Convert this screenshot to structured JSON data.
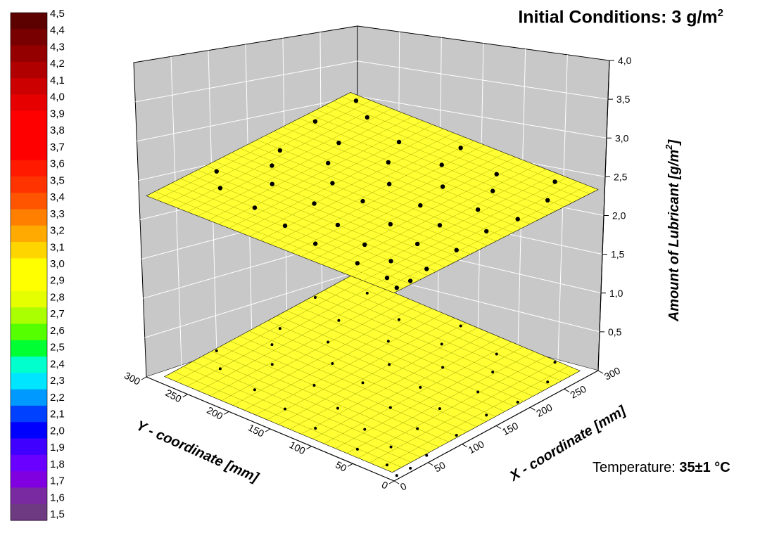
{
  "title": {
    "text": "Initial Conditions: 3 g/m",
    "sup": "2"
  },
  "temperature": {
    "label": "Temperature: ",
    "value": "35±1 °C"
  },
  "chart_data": {
    "type": "scatter3d_surface",
    "surface_value": 3.0,
    "surface_color": "#ffff33",
    "x_axis": {
      "label": "X - coordinate [mm]",
      "range": [
        0,
        300
      ],
      "ticks": [
        "0",
        "50",
        "100",
        "150",
        "200",
        "250",
        "300"
      ]
    },
    "y_axis": {
      "label": "Y - coordinate [mm]",
      "range": [
        0,
        300
      ],
      "ticks": [
        "0",
        "50",
        "100",
        "150",
        "200",
        "250",
        "300"
      ]
    },
    "z_axis": {
      "label": "Amount of Lubricant [g/m",
      "label_sup": "2",
      "label_end": "]",
      "range": [
        0,
        4.0
      ],
      "ticks": [
        "0,5",
        "1,0",
        "1,5",
        "2,0",
        "2,5",
        "3,0",
        "3,5",
        "4,0"
      ]
    },
    "colorscale": {
      "ticks": [
        "4,5",
        "4,4",
        "4,3",
        "4,2",
        "4,1",
        "4,0",
        "3,9",
        "3,8",
        "3,7",
        "3,6",
        "3,5",
        "3,4",
        "3,3",
        "3,2",
        "3,1",
        "3,0",
        "2,9",
        "2,8",
        "2,7",
        "2,6",
        "2,5",
        "2,4",
        "2,3",
        "2,2",
        "2,1",
        "2,0",
        "1,9",
        "1,8",
        "1,7",
        "1,6",
        "1,5"
      ],
      "colors": [
        "#5c0000",
        "#780000",
        "#940000",
        "#b00000",
        "#cc0000",
        "#e60000",
        "#ff0000",
        "#ff0000",
        "#ff0000",
        "#ff1a00",
        "#ff3300",
        "#ff5500",
        "#ff8000",
        "#ffaa00",
        "#ffd500",
        "#ffff00",
        "#ffff00",
        "#e6ff00",
        "#aaff00",
        "#55ff00",
        "#00ff33",
        "#00ffcc",
        "#00e5ff",
        "#0099ff",
        "#0040ff",
        "#0000ff",
        "#4000ff",
        "#6a00ff",
        "#8000e0",
        "#7a2aa0",
        "#6e3a82"
      ]
    },
    "points": [
      {
        "x": 10,
        "y": 5,
        "z": 3.0
      },
      {
        "x": 30,
        "y": 5,
        "z": 3.0
      },
      {
        "x": 20,
        "y": 25,
        "z": 3.0
      },
      {
        "x": 60,
        "y": 10,
        "z": 3.0
      },
      {
        "x": 50,
        "y": 45,
        "z": 3.0
      },
      {
        "x": 25,
        "y": 65,
        "z": 3.0
      },
      {
        "x": 110,
        "y": 15,
        "z": 3.0
      },
      {
        "x": 95,
        "y": 50,
        "z": 3.0
      },
      {
        "x": 60,
        "y": 85,
        "z": 3.0
      },
      {
        "x": 30,
        "y": 120,
        "z": 3.0
      },
      {
        "x": 160,
        "y": 20,
        "z": 3.0
      },
      {
        "x": 140,
        "y": 60,
        "z": 3.0
      },
      {
        "x": 110,
        "y": 95,
        "z": 3.0
      },
      {
        "x": 75,
        "y": 130,
        "z": 3.0
      },
      {
        "x": 40,
        "y": 165,
        "z": 3.0
      },
      {
        "x": 200,
        "y": 15,
        "z": 3.0
      },
      {
        "x": 190,
        "y": 55,
        "z": 3.0
      },
      {
        "x": 160,
        "y": 100,
        "z": 3.0
      },
      {
        "x": 130,
        "y": 145,
        "z": 3.0
      },
      {
        "x": 95,
        "y": 175,
        "z": 3.0
      },
      {
        "x": 50,
        "y": 210,
        "z": 3.0
      },
      {
        "x": 250,
        "y": 20,
        "z": 3.0
      },
      {
        "x": 230,
        "y": 70,
        "z": 3.0
      },
      {
        "x": 205,
        "y": 110,
        "z": 3.0
      },
      {
        "x": 175,
        "y": 150,
        "z": 3.0
      },
      {
        "x": 140,
        "y": 190,
        "z": 3.0
      },
      {
        "x": 100,
        "y": 230,
        "z": 3.0
      },
      {
        "x": 60,
        "y": 260,
        "z": 3.0
      },
      {
        "x": 285,
        "y": 40,
        "z": 3.0
      },
      {
        "x": 260,
        "y": 90,
        "z": 3.0
      },
      {
        "x": 240,
        "y": 140,
        "z": 3.0
      },
      {
        "x": 210,
        "y": 180,
        "z": 3.0
      },
      {
        "x": 170,
        "y": 220,
        "z": 3.0
      },
      {
        "x": 130,
        "y": 255,
        "z": 3.0
      },
      {
        "x": 85,
        "y": 285,
        "z": 3.0
      },
      {
        "x": 280,
        "y": 150,
        "z": 3.0
      },
      {
        "x": 250,
        "y": 200,
        "z": 3.0
      },
      {
        "x": 210,
        "y": 240,
        "z": 3.0
      },
      {
        "x": 160,
        "y": 270,
        "z": 3.0
      },
      {
        "x": 270,
        "y": 255,
        "z": 3.0
      },
      {
        "x": 230,
        "y": 285,
        "z": 3.0
      },
      {
        "x": 290,
        "y": 285,
        "z": 3.0
      }
    ]
  }
}
